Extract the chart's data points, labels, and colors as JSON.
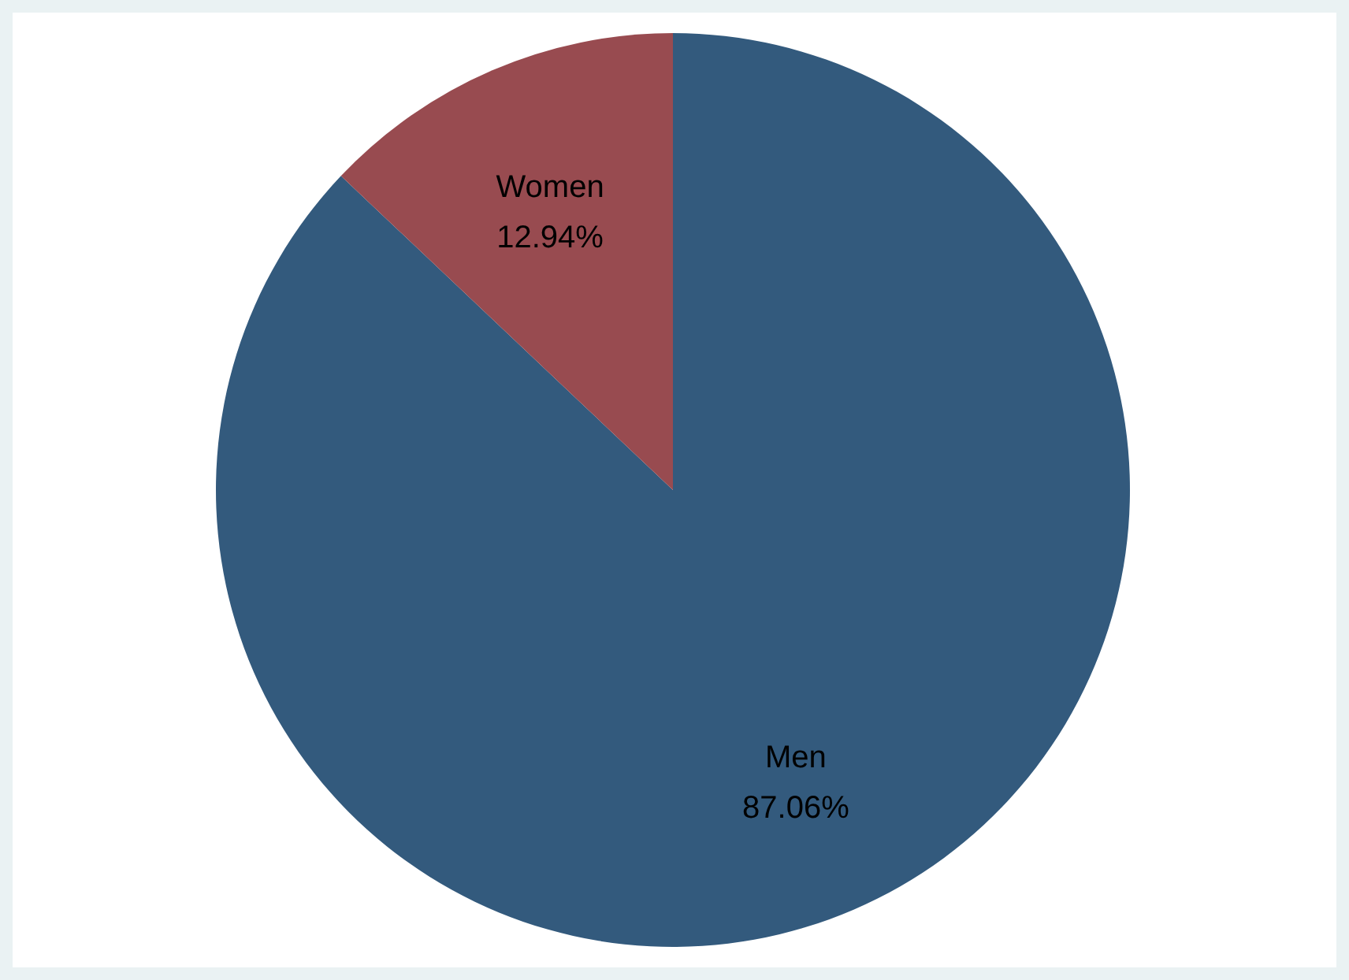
{
  "chart_data": {
    "type": "pie",
    "categories": [
      "Men",
      "Women"
    ],
    "values": [
      87.06,
      12.94
    ],
    "colors": [
      "#335a7d",
      "#984b50"
    ],
    "value_labels": [
      "87.06%",
      "12.94%"
    ]
  }
}
